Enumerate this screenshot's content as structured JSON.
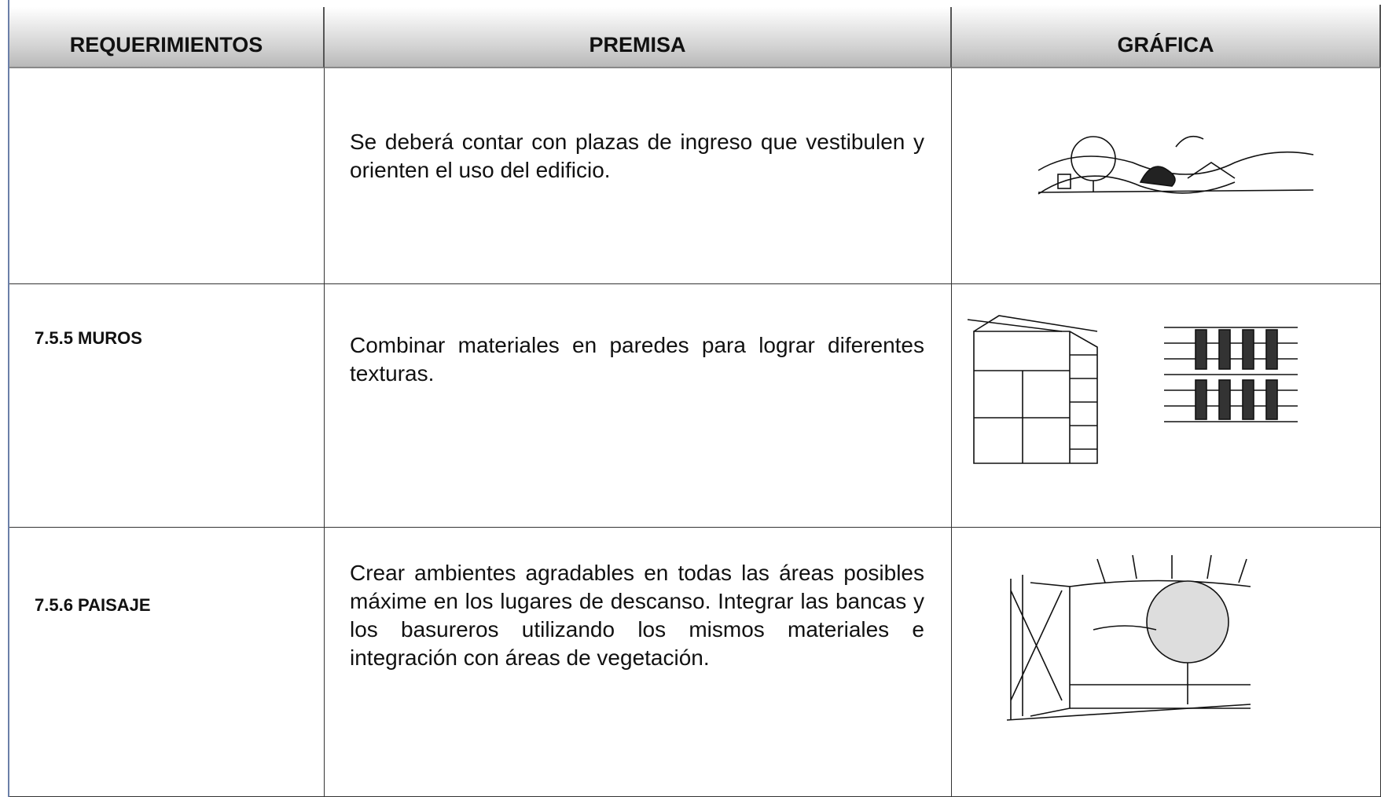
{
  "table": {
    "headers": [
      "REQUERIMIENTOS",
      "PREMISA",
      "GRÁFICA"
    ],
    "rows": [
      {
        "premise": "Se deberá contar con plazas de ingreso que vestibulen y orienten el uso del edificio."
      },
      {
        "requirement": "7.5.5 MUROS",
        "premise": "Combinar materiales en paredes para lograr diferentes texturas."
      },
      {
        "requirement": "7.5.6 PAISAJE",
        "premise": "Crear ambientes agradables en todas las áreas posibles máxime en los lugares de descanso. Integrar las bancas y los basureros utilizando los mismos materiales e integración con áreas de vegetación."
      }
    ]
  }
}
